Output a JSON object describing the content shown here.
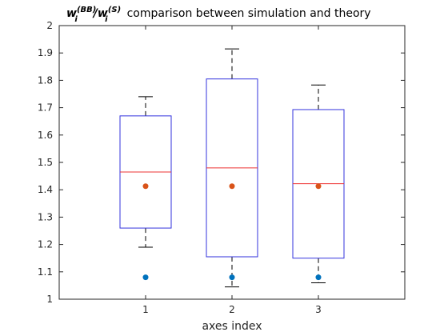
{
  "chart_data": {
    "type": "box",
    "title_parts": {
      "numerator_base": "w",
      "numerator_sub": "i",
      "numerator_sup": "(BB)",
      "slash": "/",
      "denominator_base": "w",
      "denominator_sub": "i",
      "denominator_sup": "(S)",
      "rest": "comparison between simulation and theory"
    },
    "xlabel": "axes index",
    "ylabel": "",
    "categories": [
      "1",
      "2",
      "3"
    ],
    "ylim": [
      1,
      2
    ],
    "yticks": [
      "1",
      "1.1",
      "1.2",
      "1.3",
      "1.4",
      "1.5",
      "1.6",
      "1.7",
      "1.8",
      "1.9",
      "2"
    ],
    "boxes": [
      {
        "category": "1",
        "whisker_low": 1.19,
        "q1": 1.26,
        "median": 1.465,
        "q3": 1.67,
        "whisker_high": 1.74
      },
      {
        "category": "2",
        "whisker_low": 1.045,
        "q1": 1.155,
        "median": 1.48,
        "q3": 1.805,
        "whisker_high": 1.915
      },
      {
        "category": "3",
        "whisker_low": 1.06,
        "q1": 1.15,
        "median": 1.422,
        "q3": 1.693,
        "whisker_high": 1.783
      }
    ],
    "markers": [
      {
        "category": "1",
        "orange": 1.413,
        "blue": 1.08
      },
      {
        "category": "2",
        "orange": 1.413,
        "blue": 1.08
      },
      {
        "category": "3",
        "orange": 1.413,
        "blue": 1.08
      }
    ],
    "colors": {
      "box": "#3333dd",
      "median": "#ee3333",
      "whisker": "#000000",
      "orange_marker": "#d95319",
      "blue_marker": "#0072bd",
      "axis": "#262626"
    },
    "grid": false,
    "legend": "none"
  }
}
